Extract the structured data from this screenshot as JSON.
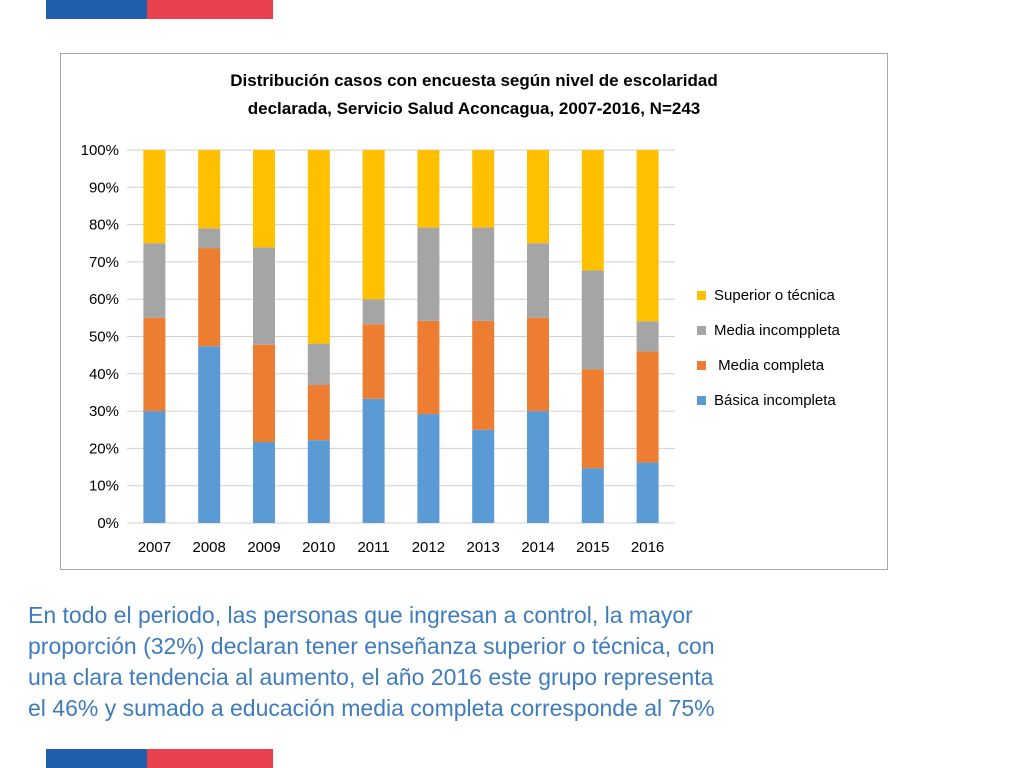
{
  "colors": {
    "flag_blue": "#1f5ea8",
    "flag_red": "#e8414d",
    "basica": "#5b9bd5",
    "media_completa": "#ed7d31",
    "media_incompleta": "#a5a5a5",
    "superior": "#ffc000",
    "caption": "#3f7cbd"
  },
  "chart_data": {
    "type": "bar",
    "stacked": true,
    "title_line1": "Distribución casos con encuesta según nivel de escolaridad",
    "title_line2": "declarada, Servicio Salud Aconcagua,  2007-2016, N=243",
    "categories": [
      "2007",
      "2008",
      "2009",
      "2010",
      "2011",
      "2012",
      "2013",
      "2014",
      "2015",
      "2016"
    ],
    "yticks": [
      "0%",
      "10%",
      "20%",
      "30%",
      "40%",
      "50%",
      "60%",
      "70%",
      "80%",
      "90%",
      "100%"
    ],
    "ylim": [
      0,
      100
    ],
    "grid": true,
    "legend_position": "right",
    "series": [
      {
        "name": "Básica incompleta",
        "color": "#5b9bd5",
        "values": [
          30,
          47.4,
          21.7,
          22.2,
          33.3,
          29.2,
          25,
          30,
          14.7,
          16.2
        ]
      },
      {
        "name": "Media completa",
        "color": "#ed7d31",
        "values": [
          25,
          26.3,
          26.1,
          14.8,
          20,
          25,
          29.2,
          25,
          26.5,
          29.8
        ]
      },
      {
        "name": "Media incomppleta",
        "color": "#a5a5a5",
        "values": [
          20,
          5.3,
          26.1,
          11.1,
          6.7,
          25,
          25,
          20,
          26.5,
          8.1
        ]
      },
      {
        "name": "Superior o técnica",
        "color": "#ffc000",
        "values": [
          25,
          21,
          26.1,
          51.9,
          40,
          20.8,
          20.8,
          25,
          32.3,
          45.9
        ]
      }
    ],
    "legend_order": [
      "Superior o técnica",
      "Media incomppleta",
      " Media completa",
      "Básica incompleta"
    ]
  },
  "caption": {
    "line1": "En todo el periodo, las personas que ingresan a control, la mayor",
    "line2": "proporción (32%) declaran tener enseñanza superior o técnica, con",
    "line3": "una clara tendencia al aumento, el año 2016 este grupo representa",
    "line4": "el 46% y sumado a educación media completa corresponde al 75%"
  }
}
